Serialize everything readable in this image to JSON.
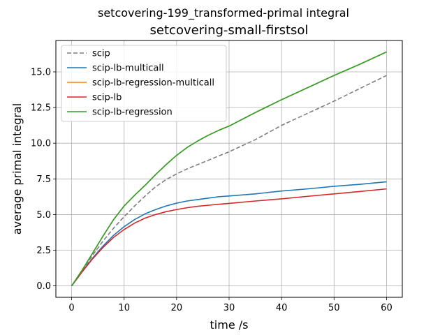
{
  "chart_data": {
    "type": "line",
    "title": "setcovering-199_transformed-primal integral",
    "subtitle": "setcovering-small-firstsol",
    "xlabel": "time /s",
    "ylabel": "average primal integral",
    "xlim": [
      -3,
      63
    ],
    "ylim": [
      -0.8,
      17.2
    ],
    "xticks": [
      0,
      10,
      20,
      30,
      40,
      50,
      60
    ],
    "yticks": [
      0.0,
      2.5,
      5.0,
      7.5,
      10.0,
      12.5,
      15.0
    ],
    "xtick_labels": [
      "0",
      "10",
      "20",
      "30",
      "40",
      "50",
      "60"
    ],
    "ytick_labels": [
      "0.0",
      "2.5",
      "5.0",
      "7.5",
      "10.0",
      "12.5",
      "15.0"
    ],
    "grid": true,
    "legend_position": "top-left",
    "x": [
      0,
      2,
      4,
      6,
      8,
      10,
      12,
      14,
      16,
      18,
      20,
      22,
      24,
      26,
      28,
      30,
      35,
      40,
      45,
      50,
      55,
      60
    ],
    "series": [
      {
        "name": "scip",
        "color": "#7f7f7f",
        "dash": "dashed",
        "values": [
          0.0,
          1.05,
          2.15,
          3.15,
          4.05,
          4.85,
          5.6,
          6.3,
          6.95,
          7.45,
          7.85,
          8.2,
          8.5,
          8.8,
          9.1,
          9.4,
          10.25,
          11.25,
          12.1,
          12.95,
          13.85,
          14.75
        ]
      },
      {
        "name": "scip-lb-multicall",
        "color": "#1f77b4",
        "dash": "solid",
        "values": [
          0.0,
          1.0,
          1.95,
          2.8,
          3.55,
          4.15,
          4.65,
          5.05,
          5.35,
          5.6,
          5.8,
          5.95,
          6.05,
          6.15,
          6.25,
          6.3,
          6.45,
          6.65,
          6.8,
          6.98,
          7.12,
          7.3
        ]
      },
      {
        "name": "scip-lb-regression-multicall",
        "color": "#ff7f0e",
        "dash": "solid",
        "values": [
          0.0,
          1.1,
          2.3,
          3.5,
          4.65,
          5.6,
          6.35,
          7.05,
          7.8,
          8.5,
          9.15,
          9.7,
          10.15,
          10.55,
          10.9,
          11.2,
          12.15,
          13.05,
          13.9,
          14.75,
          15.55,
          16.4
        ]
      },
      {
        "name": "scip-lb",
        "color": "#d62728",
        "dash": "solid",
        "values": [
          0.0,
          0.98,
          1.9,
          2.7,
          3.4,
          3.95,
          4.4,
          4.75,
          5.0,
          5.2,
          5.35,
          5.48,
          5.58,
          5.65,
          5.72,
          5.78,
          5.95,
          6.1,
          6.28,
          6.45,
          6.62,
          6.8
        ]
      },
      {
        "name": "scip-lb-regression",
        "color": "#2ca02c",
        "dash": "solid",
        "values": [
          0.0,
          1.1,
          2.3,
          3.5,
          4.65,
          5.6,
          6.35,
          7.05,
          7.8,
          8.5,
          9.15,
          9.7,
          10.15,
          10.55,
          10.9,
          11.2,
          12.15,
          13.05,
          13.9,
          14.75,
          15.55,
          16.4
        ]
      }
    ]
  }
}
